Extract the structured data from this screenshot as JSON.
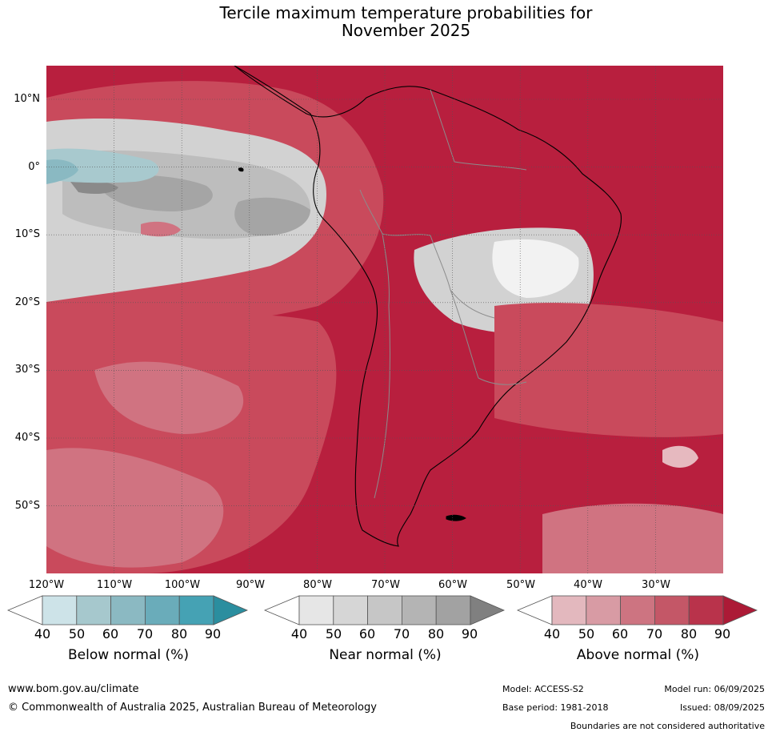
{
  "title": {
    "line1": "Tercile maximum temperature probabilities for",
    "line2": "November 2025"
  },
  "map": {
    "lat_labels": [
      "10°N",
      "0°",
      "10°S",
      "20°S",
      "30°S",
      "40°S",
      "50°S"
    ],
    "lon_labels": [
      "120°W",
      "110°W",
      "100°W",
      "90°W",
      "80°W",
      "70°W",
      "60°W",
      "50°W",
      "40°W",
      "30°W"
    ],
    "colors": {
      "above_90": "#b81f3e",
      "above_80": "#c94a5c",
      "above_70": "#d07381",
      "above_60": "#db98a2",
      "above_50": "#e6b9bf",
      "near_90": "#8a8a8a",
      "near_80": "#a5a5a5",
      "near_70": "#bdbdbd",
      "near_60": "#d2d2d2",
      "below_50": "#a8c9ce",
      "below_60": "#8ab9c2",
      "land_border": "#000000",
      "country_border": "#8c8c8c",
      "gridline": "#555555"
    }
  },
  "legends": {
    "ticks": [
      "40",
      "50",
      "60",
      "70",
      "80",
      "90"
    ],
    "below": {
      "title": "Below normal (%)",
      "colors": [
        "#ffffff",
        "#cde3e8",
        "#a6c8cd",
        "#8bb9c2",
        "#6aacba",
        "#45a2b4",
        "#2b8e9f"
      ]
    },
    "near": {
      "title": "Near normal (%)",
      "colors": [
        "#ffffff",
        "#e6e6e6",
        "#d6d6d6",
        "#c6c6c6",
        "#b4b4b4",
        "#a2a2a2",
        "#808080"
      ]
    },
    "above": {
      "title": "Above normal (%)",
      "colors": [
        "#ffffff",
        "#e3b8be",
        "#d89ba4",
        "#cd7481",
        "#c45767",
        "#b9334b",
        "#ac1a36"
      ]
    }
  },
  "footer": {
    "url": "www.bom.gov.au/climate",
    "copyright": "© Commonwealth of Australia 2025, Australian Bureau of Meteorology",
    "model": "Model: ACCESS-S2",
    "model_run": "Model run: 06/09/2025",
    "base_period": "Base period: 1981-2018",
    "issued": "Issued: 08/09/2025",
    "disclaimer": "Boundaries are not considered authoritative"
  }
}
